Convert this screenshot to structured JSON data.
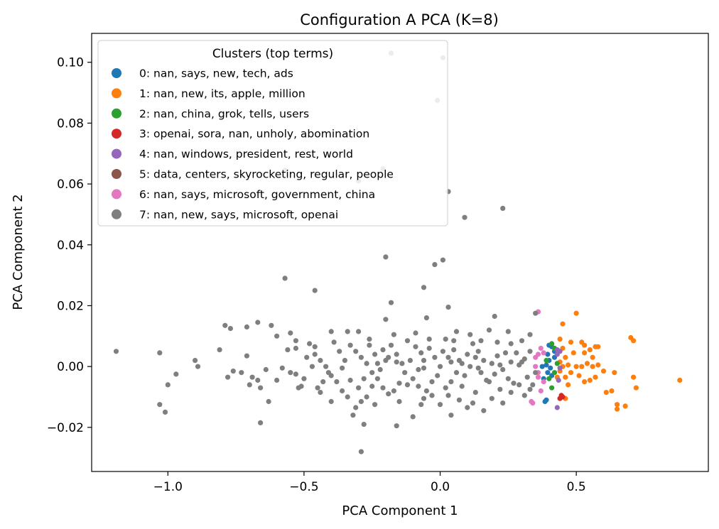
{
  "chart_data": {
    "type": "scatter",
    "title": "Configuration A PCA (K=8)",
    "xlabel": "PCA Component 1",
    "ylabel": "PCA Component 2",
    "xlim": [
      -1.28,
      0.985
    ],
    "ylim": [
      -0.0345,
      0.1095
    ],
    "xticks": [
      -1.0,
      -0.5,
      0.0,
      0.5
    ],
    "xtick_labels": [
      "−1.0",
      "−0.5",
      "0.0",
      "0.5"
    ],
    "yticks": [
      -0.02,
      0.0,
      0.02,
      0.04,
      0.06,
      0.08,
      0.1
    ],
    "ytick_labels": [
      "−0.02",
      "0.00",
      "0.02",
      "0.04",
      "0.06",
      "0.08",
      "0.10"
    ],
    "grid": false,
    "legend": {
      "title": "Clusters (top terms)",
      "placement": "top-left"
    },
    "series": [
      {
        "name": "0: nan, says, new, tech, ads",
        "color": "#1f77b4",
        "points": [
          [
            0.4,
            0.007
          ],
          [
            0.41,
            0.0065
          ],
          [
            0.395,
            0.004
          ],
          [
            0.42,
            0.003
          ],
          [
            0.4,
            0.002
          ],
          [
            0.39,
            0.0005
          ],
          [
            0.405,
            -0.0005
          ],
          [
            0.395,
            -0.002
          ],
          [
            0.38,
            -0.004
          ],
          [
            0.39,
            -0.011
          ],
          [
            0.385,
            -0.0115
          ],
          [
            0.42,
            0.005
          ],
          [
            0.375,
            0.0
          ],
          [
            0.41,
            -0.003
          ]
        ]
      },
      {
        "name": "1: nan, new, its, apple, million",
        "color": "#ff7f0e",
        "points": [
          [
            0.88,
            -0.0045
          ],
          [
            0.7,
            0.0095
          ],
          [
            0.71,
            0.0085
          ],
          [
            0.72,
            -0.007
          ],
          [
            0.71,
            -0.0035
          ],
          [
            0.68,
            -0.013
          ],
          [
            0.65,
            -0.0125
          ],
          [
            0.65,
            -0.014
          ],
          [
            0.64,
            -0.002
          ],
          [
            0.63,
            -0.008
          ],
          [
            0.61,
            -0.0085
          ],
          [
            0.57,
            -0.0035
          ],
          [
            0.55,
            -0.0045
          ],
          [
            0.53,
            -0.005
          ],
          [
            0.56,
            0.003
          ],
          [
            0.58,
            0.0065
          ],
          [
            0.57,
            0.0065
          ],
          [
            0.55,
            0.0055
          ],
          [
            0.53,
            0.0045
          ],
          [
            0.54,
            0.001
          ],
          [
            0.52,
            0.0
          ],
          [
            0.5,
            0.0
          ],
          [
            0.51,
            -0.003
          ],
          [
            0.48,
            -0.002
          ],
          [
            0.47,
            -0.006
          ],
          [
            0.5,
            0.0175
          ],
          [
            0.45,
            0.014
          ],
          [
            0.48,
            0.008
          ],
          [
            0.45,
            0.006
          ],
          [
            0.46,
            0.003
          ],
          [
            0.44,
            0.0015
          ],
          [
            0.45,
            0.0
          ],
          [
            0.47,
            0.0005
          ],
          [
            0.44,
            -0.0015
          ],
          [
            0.46,
            -0.0035
          ],
          [
            0.43,
            -0.0035
          ],
          [
            0.46,
            -0.0105
          ],
          [
            0.53,
            0.007
          ],
          [
            0.52,
            0.008
          ],
          [
            0.6,
            -0.0015
          ],
          [
            0.58,
            0.0005
          ],
          [
            0.56,
            0.0
          ],
          [
            0.44,
            0.009
          ],
          [
            0.49,
            0.0045
          ]
        ]
      },
      {
        "name": "2: nan, china, grok, tells, users",
        "color": "#2ca02c",
        "points": [
          [
            0.41,
            0.0075
          ],
          [
            0.42,
            0.006
          ],
          [
            0.39,
            0.002
          ],
          [
            0.43,
            0.001
          ],
          [
            0.4,
            -0.004
          ],
          [
            0.41,
            -0.007
          ],
          [
            0.42,
            -0.002
          ]
        ]
      },
      {
        "name": "3: openai, sora, nan, unholy, abomination",
        "color": "#d62728",
        "points": [
          [
            0.445,
            -0.0095
          ],
          [
            0.44,
            -0.0105
          ],
          [
            0.45,
            -0.01
          ]
        ]
      },
      {
        "name": "4: nan, windows, president, rest, world",
        "color": "#9467bd",
        "points": [
          [
            0.43,
            0.0055
          ],
          [
            0.44,
            0.005
          ],
          [
            0.43,
            0.004
          ],
          [
            0.435,
            -0.0045
          ],
          [
            0.43,
            -0.0135
          ],
          [
            0.44,
            -0.0005
          ]
        ]
      },
      {
        "name": "5: data, centers, skyrocketing, regular, people",
        "color": "#8c564b",
        "points": []
      },
      {
        "name": "6: nan, says, microsoft, government, china",
        "color": "#e377c2",
        "points": [
          [
            0.36,
            0.018
          ],
          [
            0.37,
            0.006
          ],
          [
            0.36,
            0.004
          ],
          [
            0.35,
            0.003
          ],
          [
            0.35,
            0.0
          ],
          [
            0.36,
            -0.002
          ],
          [
            0.38,
            -0.005
          ],
          [
            0.37,
            -0.008
          ],
          [
            0.34,
            -0.012
          ],
          [
            0.335,
            -0.0115
          ],
          [
            0.38,
            0.0045
          ],
          [
            0.36,
            -0.0035
          ]
        ]
      },
      {
        "name": "7: nan, new, says, microsoft, openai",
        "color": "#7f7f7f",
        "points": [
          [
            -0.18,
            0.103
          ],
          [
            0.01,
            0.1015
          ],
          [
            -0.01,
            0.0875
          ],
          [
            -0.57,
            0.0645
          ],
          [
            -0.21,
            0.065
          ],
          [
            0.03,
            0.0575
          ],
          [
            -0.3,
            0.061
          ],
          [
            0.23,
            0.052
          ],
          [
            0.09,
            0.049
          ],
          [
            -0.2,
            0.036
          ],
          [
            0.01,
            0.035
          ],
          [
            -0.02,
            0.0335
          ],
          [
            -0.57,
            0.029
          ],
          [
            -0.46,
            0.025
          ],
          [
            -0.06,
            0.026
          ],
          [
            -0.18,
            0.021
          ],
          [
            0.03,
            0.0195
          ],
          [
            -0.2,
            0.0155
          ],
          [
            -0.05,
            0.016
          ],
          [
            0.2,
            0.0165
          ],
          [
            -0.62,
            0.0135
          ],
          [
            -0.79,
            0.0135
          ],
          [
            -0.77,
            0.0125
          ],
          [
            -0.71,
            0.013
          ],
          [
            -0.67,
            0.0145
          ],
          [
            -0.6,
            0.01
          ],
          [
            -0.55,
            0.011
          ],
          [
            -0.53,
            0.0085
          ],
          [
            -0.4,
            0.0115
          ],
          [
            -0.34,
            0.0115
          ],
          [
            -0.3,
            0.0115
          ],
          [
            -0.17,
            0.0105
          ],
          [
            -0.09,
            0.011
          ],
          [
            0.06,
            0.0115
          ],
          [
            0.11,
            0.0105
          ],
          [
            0.18,
            0.012
          ],
          [
            0.25,
            0.0115
          ],
          [
            0.33,
            0.0105
          ],
          [
            0.35,
            0.0175
          ],
          [
            -1.19,
            0.005
          ],
          [
            -1.03,
            0.0045
          ],
          [
            -0.9,
            0.002
          ],
          [
            -0.89,
            0.0
          ],
          [
            -0.97,
            -0.0025
          ],
          [
            -1.0,
            -0.006
          ],
          [
            -1.03,
            -0.0125
          ],
          [
            -1.01,
            -0.015
          ],
          [
            -0.81,
            0.0055
          ],
          [
            -0.78,
            -0.0035
          ],
          [
            -0.76,
            -0.0015
          ],
          [
            -0.73,
            -0.002
          ],
          [
            -0.71,
            0.0035
          ],
          [
            -0.7,
            -0.006
          ],
          [
            -0.69,
            -0.0035
          ],
          [
            -0.67,
            -0.0045
          ],
          [
            -0.66,
            -0.007
          ],
          [
            -0.64,
            -0.001
          ],
          [
            -0.63,
            -0.0115
          ],
          [
            -0.66,
            -0.0185
          ],
          [
            -0.6,
            -0.0045
          ],
          [
            -0.58,
            -0.0005
          ],
          [
            -0.55,
            -0.002
          ],
          [
            -0.53,
            -0.0025
          ],
          [
            -0.51,
            -0.0065
          ],
          [
            -0.56,
            0.0055
          ],
          [
            -0.53,
            0.006
          ],
          [
            -0.48,
            0.0075
          ],
          [
            -0.46,
            0.004
          ],
          [
            -0.44,
            0.002
          ],
          [
            -0.42,
            0.0
          ],
          [
            -0.4,
            -0.003
          ],
          [
            -0.38,
            -0.005
          ],
          [
            -0.36,
            -0.008
          ],
          [
            -0.34,
            -0.01
          ],
          [
            -0.33,
            0.007
          ],
          [
            -0.31,
            0.005
          ],
          [
            -0.29,
            0.003
          ],
          [
            -0.27,
            0.001
          ],
          [
            -0.25,
            -0.002
          ],
          [
            -0.23,
            -0.004
          ],
          [
            -0.21,
            -0.007
          ],
          [
            -0.19,
            -0.009
          ],
          [
            -0.31,
            -0.0135
          ],
          [
            -0.28,
            -0.019
          ],
          [
            -0.32,
            -0.016
          ],
          [
            -0.29,
            -0.028
          ],
          [
            -0.16,
            -0.0195
          ],
          [
            -0.1,
            -0.0165
          ],
          [
            -0.07,
            -0.0125
          ],
          [
            -0.03,
            -0.0095
          ],
          [
            0.0,
            -0.0125
          ],
          [
            0.04,
            -0.016
          ],
          [
            0.07,
            -0.011
          ],
          [
            0.1,
            -0.0135
          ],
          [
            0.13,
            -0.0085
          ],
          [
            0.16,
            -0.0145
          ],
          [
            0.19,
            -0.0105
          ],
          [
            0.23,
            -0.012
          ],
          [
            0.26,
            -0.0085
          ],
          [
            0.29,
            -0.006
          ],
          [
            0.31,
            -0.0095
          ],
          [
            0.33,
            -0.0075
          ],
          [
            0.32,
            -0.0035
          ],
          [
            0.3,
            0.0015
          ],
          [
            0.28,
            0.0045
          ],
          [
            0.26,
            0.0075
          ],
          [
            0.24,
            0.0045
          ],
          [
            0.22,
            0.0005
          ],
          [
            0.2,
            -0.0025
          ],
          [
            0.18,
            -0.005
          ],
          [
            0.16,
            0.002
          ],
          [
            0.14,
            0.005
          ],
          [
            0.12,
            0.0075
          ],
          [
            0.1,
            0.004
          ],
          [
            0.08,
            0.001
          ],
          [
            0.06,
            -0.002
          ],
          [
            0.04,
            -0.005
          ],
          [
            0.02,
            -0.007
          ],
          [
            0.0,
            0.0
          ],
          [
            -0.02,
            0.003
          ],
          [
            -0.04,
            0.006
          ],
          [
            -0.06,
            0.002
          ],
          [
            -0.08,
            -0.001
          ],
          [
            -0.1,
            -0.004
          ],
          [
            -0.12,
            -0.006
          ],
          [
            -0.14,
            0.001
          ],
          [
            -0.16,
            0.004
          ],
          [
            -0.18,
            0.007
          ],
          [
            -0.2,
            0.002
          ],
          [
            -0.22,
            -0.001
          ],
          [
            -0.24,
            0.004
          ],
          [
            -0.26,
            0.007
          ],
          [
            -0.28,
            -0.004
          ],
          [
            -0.3,
            -0.007
          ],
          [
            -0.35,
            0.002
          ],
          [
            -0.37,
            0.005
          ],
          [
            -0.39,
            0.008
          ],
          [
            -0.41,
            -0.002
          ],
          [
            -0.43,
            -0.005
          ],
          [
            -0.45,
            -0.007
          ],
          [
            -0.47,
            0.0
          ],
          [
            -0.49,
            0.003
          ],
          [
            -0.5,
            -0.004
          ],
          [
            0.01,
            0.005
          ],
          [
            0.03,
            0.003
          ],
          [
            0.05,
            0.0055
          ],
          [
            0.07,
            0.002
          ],
          [
            0.09,
            -0.003
          ],
          [
            0.11,
            0.0
          ],
          [
            0.13,
            0.003
          ],
          [
            0.15,
            -0.002
          ],
          [
            0.17,
            -0.0045
          ],
          [
            0.19,
            0.001
          ],
          [
            0.21,
            0.0035
          ],
          [
            0.23,
            -0.001
          ],
          [
            0.25,
            -0.004
          ],
          [
            0.27,
            -0.0055
          ],
          [
            0.29,
            0.0005
          ],
          [
            0.31,
            0.0025
          ],
          [
            0.33,
            0.005
          ],
          [
            -0.01,
            -0.003
          ],
          [
            -0.03,
            -0.005
          ],
          [
            -0.05,
            -0.008
          ],
          [
            -0.07,
            0.0045
          ],
          [
            -0.09,
            0.0065
          ],
          [
            -0.11,
            0.002
          ],
          [
            -0.13,
            -0.002
          ],
          [
            -0.15,
            -0.0055
          ],
          [
            -0.17,
            -0.008
          ],
          [
            -0.19,
            0.003
          ],
          [
            -0.21,
            0.0055
          ],
          [
            -0.23,
            0.001
          ],
          [
            -0.25,
            -0.0065
          ],
          [
            -0.27,
            -0.01
          ],
          [
            -0.29,
            -0.0115
          ],
          [
            0.02,
            0.009
          ],
          [
            0.05,
            0.0085
          ],
          [
            -0.04,
            0.009
          ],
          [
            -0.12,
            0.0085
          ],
          [
            -0.26,
            0.009
          ],
          [
            0.15,
            0.0085
          ],
          [
            0.21,
            0.008
          ],
          [
            0.3,
            0.0085
          ],
          [
            0.03,
            -0.0095
          ],
          [
            -0.06,
            -0.0105
          ],
          [
            -0.15,
            -0.0115
          ],
          [
            -0.24,
            -0.0125
          ],
          [
            0.12,
            -0.012
          ],
          [
            0.22,
            -0.0075
          ],
          [
            -0.4,
            -0.0115
          ],
          [
            -0.44,
            -0.0085
          ],
          [
            -0.52,
            -0.007
          ],
          [
            0.34,
            -0.006
          ],
          [
            0.35,
            -0.002
          ],
          [
            0.08,
            -0.0065
          ],
          [
            -0.08,
            -0.0065
          ],
          [
            -0.33,
            -0.0045
          ],
          [
            0.26,
            0.0015
          ],
          [
            -0.16,
            0.0015
          ],
          [
            0.04,
            0.0015
          ],
          [
            -0.06,
            -0.0005
          ],
          [
            0.14,
            -0.0005
          ],
          [
            -0.36,
            -0.0005
          ],
          [
            -0.46,
            0.0065
          ]
        ]
      }
    ]
  }
}
